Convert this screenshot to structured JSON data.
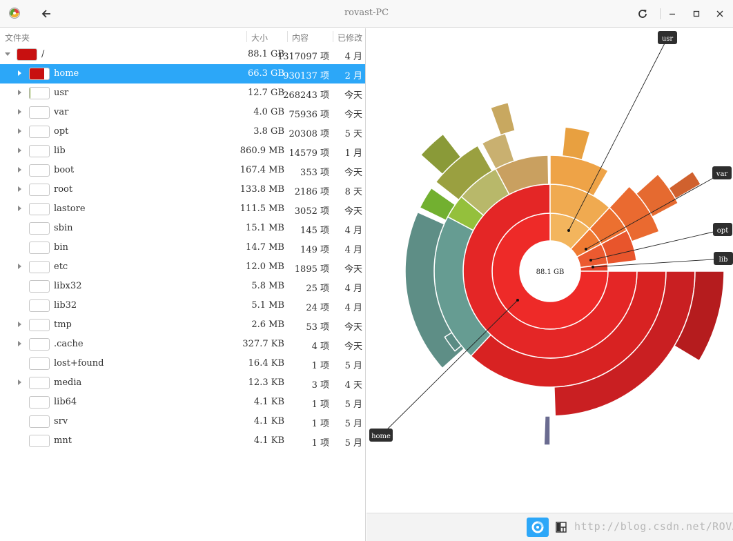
{
  "window": {
    "title": "rovast-PC"
  },
  "header": {
    "col_folder": "文件夹",
    "col_size": "大小",
    "col_items": "内容",
    "col_modified": "已修改"
  },
  "tree": {
    "root": {
      "name": "/",
      "size": "88.1 GB",
      "items": "1317097 项",
      "modified": "4 月",
      "fill_color": "#c81010",
      "fill_fraction": 1.0
    },
    "rows": [
      {
        "name": "home",
        "size": "66.3 GB",
        "items": "930137 项",
        "modified": "2 月",
        "expandable": true,
        "fill_color": "#c81010",
        "fill_fraction": 0.75
      },
      {
        "name": "usr",
        "size": "12.7 GB",
        "items": "268243 项",
        "modified": "今天",
        "expandable": true,
        "fill_color": "#7aa030",
        "fill_fraction": 0.04
      },
      {
        "name": "var",
        "size": "4.0 GB",
        "items": "75936 项",
        "modified": "今天",
        "expandable": true,
        "fill_color": "#e08030",
        "fill_fraction": 0.0
      },
      {
        "name": "opt",
        "size": "3.8 GB",
        "items": "20308 项",
        "modified": "5 天",
        "expandable": true,
        "fill_color": "#e08030",
        "fill_fraction": 0.0
      },
      {
        "name": "lib",
        "size": "860.9 MB",
        "items": "14579 项",
        "modified": "1 月",
        "expandable": true,
        "fill_color": "#e08030",
        "fill_fraction": 0.0
      },
      {
        "name": "boot",
        "size": "167.4 MB",
        "items": "353 项",
        "modified": "今天",
        "expandable": true,
        "fill_color": "#e08030",
        "fill_fraction": 0.0
      },
      {
        "name": "root",
        "size": "133.8 MB",
        "items": "2186 项",
        "modified": "8 天",
        "expandable": true,
        "fill_color": "#e08030",
        "fill_fraction": 0.0
      },
      {
        "name": "lastore",
        "size": "111.5 MB",
        "items": "3052 项",
        "modified": "今天",
        "expandable": true,
        "fill_color": "#e08030",
        "fill_fraction": 0.0
      },
      {
        "name": "sbin",
        "size": "15.1 MB",
        "items": "145 项",
        "modified": "4 月",
        "expandable": false,
        "fill_color": "#e08030",
        "fill_fraction": 0.0
      },
      {
        "name": "bin",
        "size": "14.7 MB",
        "items": "149 项",
        "modified": "4 月",
        "expandable": false,
        "fill_color": "#e08030",
        "fill_fraction": 0.0
      },
      {
        "name": "etc",
        "size": "12.0 MB",
        "items": "1895 项",
        "modified": "今天",
        "expandable": true,
        "fill_color": "#e08030",
        "fill_fraction": 0.0
      },
      {
        "name": "libx32",
        "size": "5.8 MB",
        "items": "25 项",
        "modified": "4 月",
        "expandable": false,
        "fill_color": "#e08030",
        "fill_fraction": 0.0
      },
      {
        "name": "lib32",
        "size": "5.1 MB",
        "items": "24 项",
        "modified": "4 月",
        "expandable": false,
        "fill_color": "#e08030",
        "fill_fraction": 0.0
      },
      {
        "name": "tmp",
        "size": "2.6 MB",
        "items": "53 项",
        "modified": "今天",
        "expandable": true,
        "fill_color": "#e08030",
        "fill_fraction": 0.0
      },
      {
        "name": ".cache",
        "size": "327.7 KB",
        "items": "4 项",
        "modified": "今天",
        "expandable": true,
        "fill_color": "#e08030",
        "fill_fraction": 0.0
      },
      {
        "name": "lost+found",
        "size": "16.4 KB",
        "items": "1 项",
        "modified": "5 月",
        "expandable": false,
        "fill_color": "#e08030",
        "fill_fraction": 0.0
      },
      {
        "name": "media",
        "size": "12.3 KB",
        "items": "3 项",
        "modified": "4 天",
        "expandable": true,
        "fill_color": "#e08030",
        "fill_fraction": 0.0
      },
      {
        "name": "lib64",
        "size": "4.1 KB",
        "items": "1 项",
        "modified": "5 月",
        "expandable": false,
        "fill_color": "#e08030",
        "fill_fraction": 0.0
      },
      {
        "name": "srv",
        "size": "4.1 KB",
        "items": "1 项",
        "modified": "5 月",
        "expandable": false,
        "fill_color": "#e08030",
        "fill_fraction": 0.0
      },
      {
        "name": "mnt",
        "size": "4.1 KB",
        "items": "1 项",
        "modified": "5 月",
        "expandable": false,
        "fill_color": "#e08030",
        "fill_fraction": 0.0
      }
    ],
    "selected_index": 0
  },
  "chart": {
    "center_label": "88.1 GB",
    "callouts": [
      "usr",
      "var",
      "opt",
      "lib",
      "home"
    ]
  },
  "watermark": "http://blog.csdn.net/ROVAST",
  "colors": {
    "accent": "#2ca7f8",
    "home": "#e02020",
    "usr": "#f0a840",
    "teal": "#5d9890",
    "green": "#70b030"
  }
}
